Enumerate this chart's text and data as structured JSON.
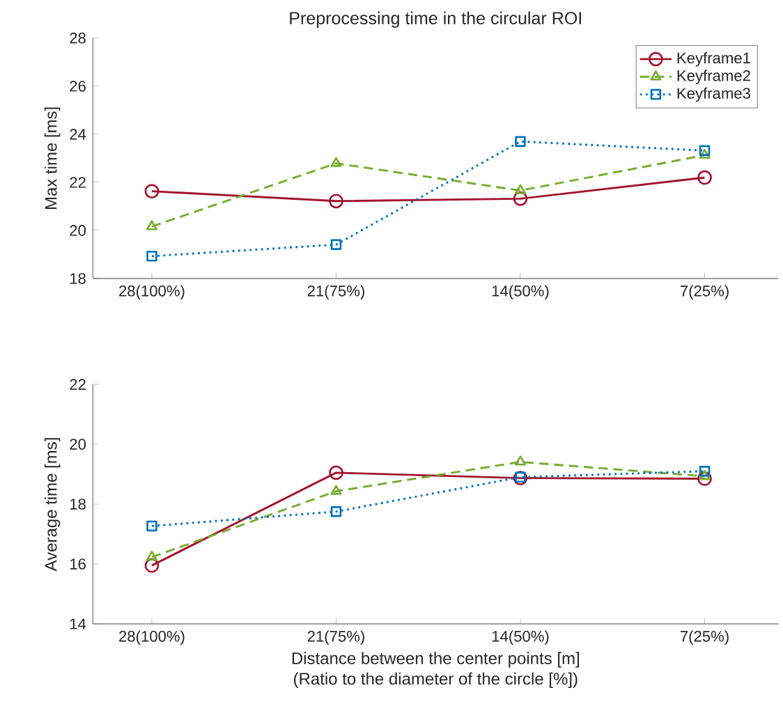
{
  "chart_data": [
    {
      "type": "line",
      "title": "Preprocessing time in the circular ROI",
      "ylabel": "Max time [ms]",
      "categories": [
        "28(100%)",
        "21(75%)",
        "14(50%)",
        "7(25%)"
      ],
      "ylim": [
        18,
        28
      ],
      "yticks": [
        18,
        20,
        22,
        24,
        26,
        28
      ],
      "legend": "top right",
      "series": [
        {
          "name": "Keyframe1",
          "color": "#a2142f",
          "marker": "circle",
          "line_style": "solid",
          "values": [
            21.63,
            21.22,
            21.32,
            22.2
          ]
        },
        {
          "name": "Keyframe2",
          "color": "#77ac30",
          "marker": "triangle",
          "line_style": "dashed",
          "values": [
            20.16,
            22.79,
            21.66,
            23.13
          ]
        },
        {
          "name": "Keyframe3",
          "color": "#0072bd",
          "marker": "square",
          "line_style": "dotted",
          "values": [
            18.93,
            19.41,
            23.7,
            23.32
          ]
        }
      ]
    },
    {
      "type": "line",
      "ylabel": "Average time [ms]",
      "xlabel": "Distance between the center points [m]\n(Ratio to the diameter of the circle [%])",
      "categories": [
        "28(100%)",
        "21(75%)",
        "14(50%)",
        "7(25%)"
      ],
      "ylim": [
        14,
        22
      ],
      "yticks": [
        14,
        16,
        18,
        20,
        22
      ],
      "series": [
        {
          "color": "#a2142f",
          "marker": "circle",
          "line_style": "solid",
          "values": [
            15.95,
            19.05,
            18.87,
            18.85
          ]
        },
        {
          "color": "#77ac30",
          "marker": "triangle",
          "line_style": "dashed",
          "values": [
            16.23,
            18.43,
            19.41,
            18.93
          ]
        },
        {
          "color": "#0072bd",
          "marker": "square",
          "line_style": "dotted",
          "values": [
            17.27,
            17.75,
            18.9,
            19.1
          ]
        }
      ]
    }
  ]
}
